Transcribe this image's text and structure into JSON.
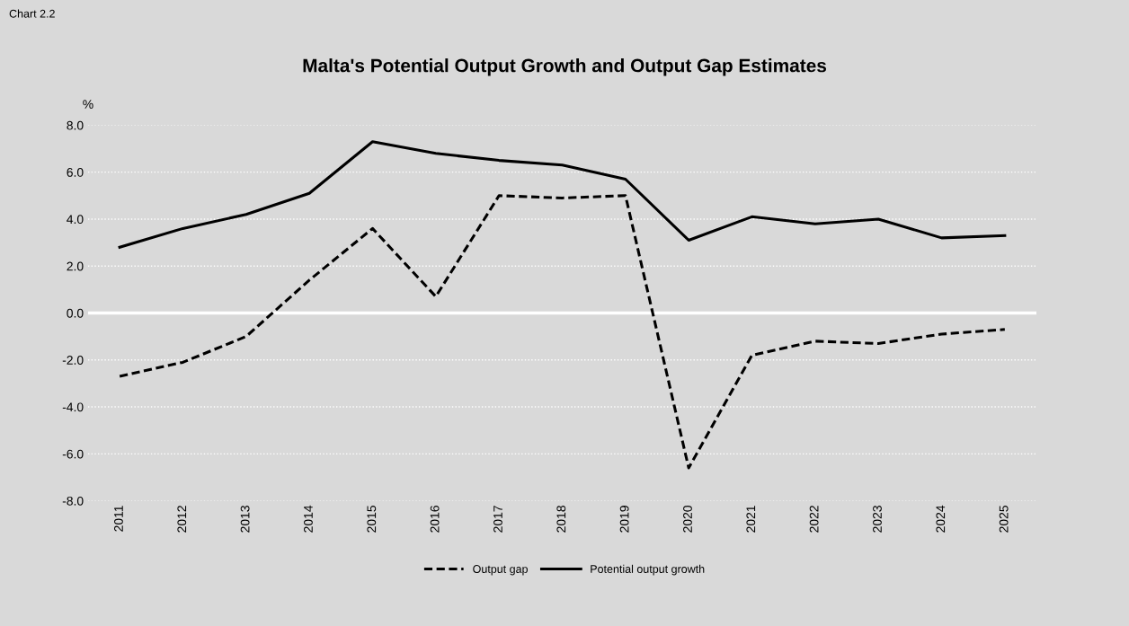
{
  "chart_data": {
    "type": "line",
    "title": "Malta's Potential Output Growth and Output Gap Estimates",
    "ylabel": "%",
    "annotations": [
      "Chart 2.2"
    ],
    "categories": [
      "2011",
      "2012",
      "2013",
      "2014",
      "2015",
      "2016",
      "2017",
      "2018",
      "2019",
      "2020",
      "2021",
      "2022",
      "2023",
      "2024",
      "2025"
    ],
    "series": [
      {
        "name": "Output gap",
        "color": "#000000",
        "line_style": "dashed",
        "values": [
          -2.7,
          -2.1,
          -1.0,
          1.4,
          3.6,
          0.7,
          5.0,
          4.9,
          5.0,
          -6.6,
          -1.8,
          -1.2,
          -1.3,
          -0.9,
          -0.7
        ]
      },
      {
        "name": "Potential output growth",
        "color": "#000000",
        "line_style": "solid",
        "values": [
          2.8,
          3.6,
          4.2,
          5.1,
          7.3,
          6.8,
          6.5,
          6.3,
          5.7,
          3.1,
          4.1,
          3.8,
          4.0,
          3.2,
          3.3
        ]
      }
    ],
    "ylim": [
      -8.0,
      8.0
    ],
    "yticks": [
      {
        "value": -8,
        "label": "-8.0"
      },
      {
        "value": -6,
        "label": "-6.0"
      },
      {
        "value": -4,
        "label": "-4.0"
      },
      {
        "value": -2,
        "label": "-2.0"
      },
      {
        "value": 0,
        "label": "0.0"
      },
      {
        "value": 2,
        "label": "2.0"
      },
      {
        "value": 4,
        "label": "4.0"
      },
      {
        "value": 6,
        "label": "6.0"
      },
      {
        "value": 8,
        "label": "8.0"
      }
    ],
    "ref_lines": [
      {
        "axis": "y",
        "value": 0,
        "color": "#ffffff"
      }
    ],
    "grid": "y",
    "legend": "bottom",
    "marker": "none"
  }
}
